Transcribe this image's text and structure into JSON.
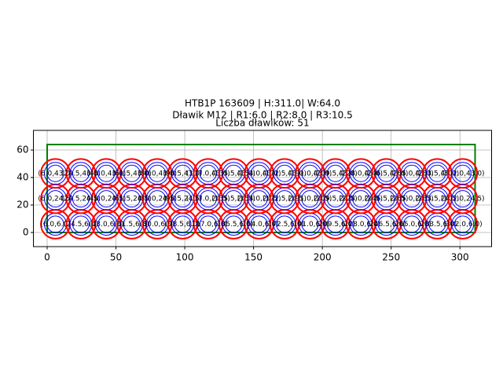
{
  "chart_data": {
    "type": "scatter",
    "title_lines": [
      "HTB1P 163609 | H:311.0| W:64.0",
      "Dławik M12 | R1:6.0 | R2:8.0 | R3:10.5",
      "Liczba dławików: 51"
    ],
    "xlim": [
      -10,
      323
    ],
    "ylim": [
      -10.3,
      74.3
    ],
    "xticks": [
      0,
      50,
      100,
      150,
      200,
      250,
      300
    ],
    "yticks": [
      0,
      20,
      40,
      60
    ],
    "grid": true,
    "frame": {
      "width": 311,
      "height": 64,
      "color": "green"
    },
    "radii": [
      {
        "value": 6.0,
        "color": "blue"
      },
      {
        "value": 8.0,
        "color": "blue"
      },
      {
        "value": 10.5,
        "color": "red"
      }
    ],
    "x": [
      6,
      24.5,
      43,
      61.5,
      80,
      98.5,
      117,
      135.5,
      154,
      172.5,
      191,
      209.5,
      228,
      246.5,
      265,
      283.5,
      302,
      6,
      24.5,
      43,
      61.5,
      80,
      98.5,
      117,
      135.5,
      154,
      172.5,
      191,
      209.5,
      228,
      246.5,
      265,
      283.5,
      302,
      6,
      24.5,
      43,
      61.5,
      80,
      98.5,
      117,
      135.5,
      154,
      172.5,
      191,
      209.5,
      228,
      246.5,
      265,
      283.5,
      302
    ],
    "y": [
      6,
      6,
      6,
      6,
      6,
      6,
      6,
      6,
      6,
      6,
      6,
      6,
      6,
      6,
      6,
      6,
      6,
      24.5,
      24.5,
      24.5,
      24.5,
      24.5,
      24.5,
      24.5,
      24.5,
      24.5,
      24.5,
      24.5,
      24.5,
      24.5,
      24.5,
      24.5,
      24.5,
      24.5,
      43,
      43,
      43,
      43,
      43,
      43,
      43,
      43,
      43,
      43,
      43,
      43,
      43,
      43,
      43,
      43,
      43
    ],
    "labels": [
      "(6.0,6.0)",
      "(24.5,6.0)",
      "(43.0,6.0)",
      "(61.5,6.0)",
      "(80.0,6.0)",
      "(98.5,6.0)",
      "(117.0,6.0)",
      "(135.5,6.0)",
      "(154.0,6.0)",
      "(172.5,6.0)",
      "(191.0,6.0)",
      "(209.5,6.0)",
      "(228.0,6.0)",
      "(246.5,6.0)",
      "(265.0,6.0)",
      "(283.5,6.0)",
      "(302.0,6.0)",
      "(6.0,24.5)",
      "(24.5,24.5)",
      "(43.0,24.5)",
      "(61.5,24.5)",
      "(80.0,24.5)",
      "(98.5,24.5)",
      "(117.0,24.5)",
      "(135.5,24.5)",
      "(154.0,24.5)",
      "(172.5,24.5)",
      "(191.0,24.5)",
      "(209.5,24.5)",
      "(228.0,24.5)",
      "(246.5,24.5)",
      "(265.0,24.5)",
      "(283.5,24.5)",
      "(302.0,24.5)",
      "(6.0,43.0)",
      "(24.5,43.0)",
      "(43.0,43.0)",
      "(61.5,43.0)",
      "(80.0,43.0)",
      "(98.5,43.0)",
      "(117.0,43.0)",
      "(135.5,43.0)",
      "(154.0,43.0)",
      "(172.5,43.0)",
      "(191.0,43.0)",
      "(209.5,43.0)",
      "(228.0,43.0)",
      "(246.5,43.0)",
      "(265.0,43.0)",
      "(283.5,43.0)",
      "(302.0,43.0)"
    ]
  }
}
